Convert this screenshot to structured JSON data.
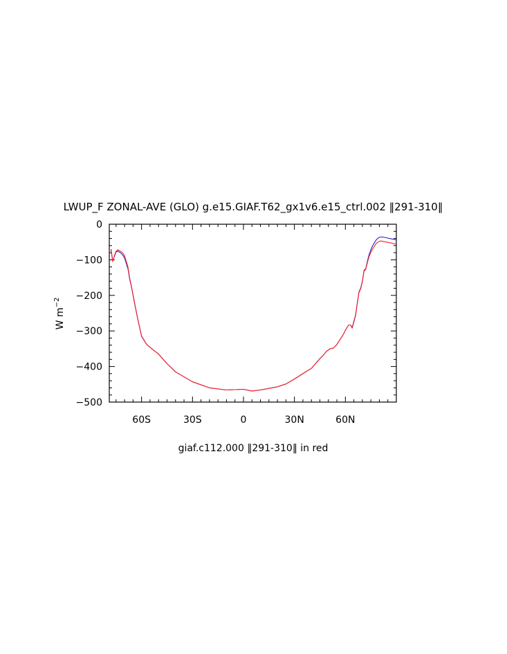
{
  "chart_data": {
    "type": "line",
    "title": "LWUP_F ZONAL-AVE (GLO) g.e15.GIAF.T62_gx1v6.e15_ctrl.002 ‖291-310‖",
    "subtitle": "giaf.c112.000 ‖291-310‖ in red",
    "ylabel_main": "W m",
    "ylabel_exp": "−2",
    "xlabel": "",
    "xlim": [
      -79,
      90
    ],
    "ylim": [
      -500,
      0
    ],
    "grid": false,
    "x_ticks": [
      {
        "value": -60,
        "label": "60S"
      },
      {
        "value": -30,
        "label": "30S"
      },
      {
        "value": 0,
        "label": "0"
      },
      {
        "value": 30,
        "label": "30N"
      },
      {
        "value": 60,
        "label": "60N"
      }
    ],
    "y_ticks": [
      {
        "value": 0,
        "label": "0"
      },
      {
        "value": -100,
        "label": "−100"
      },
      {
        "value": -200,
        "label": "−200"
      },
      {
        "value": -300,
        "label": "−300"
      },
      {
        "value": -400,
        "label": "−400"
      },
      {
        "value": -500,
        "label": "−500"
      }
    ],
    "series": [
      {
        "color": "#1f1fd0",
        "x": [
          -78,
          -77,
          -76,
          -75,
          -74,
          -72,
          -71,
          -70,
          -68,
          -67,
          -66,
          -64,
          -62,
          -60,
          -57,
          -54,
          -50,
          -45,
          -40,
          -30,
          -20,
          -10,
          0,
          5,
          10,
          20,
          25,
          30,
          35,
          40,
          45,
          47,
          49,
          51,
          53,
          55,
          57,
          59,
          60,
          61,
          62,
          63,
          64,
          65,
          66,
          67,
          68,
          69,
          70,
          71,
          72,
          73,
          74,
          75,
          76,
          77,
          78,
          79,
          80,
          81,
          82,
          83,
          84,
          85,
          86,
          87,
          88,
          89,
          90
        ],
        "y": [
          -70,
          -103,
          -90,
          -78,
          -75,
          -82,
          -87,
          -95,
          -125,
          -155,
          -175,
          -225,
          -272,
          -315,
          -338,
          -350,
          -365,
          -392,
          -415,
          -443,
          -460,
          -466,
          -464,
          -469,
          -466,
          -457,
          -449,
          -435,
          -420,
          -405,
          -378,
          -368,
          -357,
          -350,
          -348,
          -338,
          -323,
          -308,
          -298,
          -290,
          -283,
          -283,
          -290,
          -273,
          -255,
          -222,
          -190,
          -180,
          -160,
          -130,
          -125,
          -103,
          -85,
          -72,
          -61,
          -53,
          -45,
          -40,
          -37,
          -36,
          -36,
          -37,
          -38,
          -39,
          -40,
          -41,
          -42,
          -43,
          -44
        ]
      },
      {
        "color": "#ff2020",
        "x": [
          -78,
          -77,
          -76,
          -75,
          -74,
          -72,
          -71,
          -70,
          -68,
          -67,
          -66,
          -64,
          -62,
          -60,
          -57,
          -54,
          -50,
          -45,
          -40,
          -30,
          -20,
          -10,
          0,
          5,
          10,
          20,
          25,
          30,
          35,
          40,
          45,
          47,
          49,
          51,
          53,
          55,
          57,
          59,
          60,
          61,
          62,
          63,
          64,
          65,
          66,
          67,
          68,
          69,
          70,
          71,
          72,
          73,
          74,
          75,
          76,
          77,
          78,
          79,
          80,
          81,
          82,
          83,
          84,
          85,
          86,
          87,
          88,
          89,
          90
        ],
        "y": [
          -72,
          -105,
          -88,
          -76,
          -72,
          -77,
          -81,
          -89,
          -120,
          -152,
          -173,
          -223,
          -271,
          -314,
          -338,
          -350,
          -365,
          -392,
          -415,
          -443,
          -460,
          -466,
          -464,
          -469,
          -466,
          -457,
          -449,
          -435,
          -420,
          -405,
          -378,
          -368,
          -357,
          -350,
          -348,
          -338,
          -323,
          -308,
          -298,
          -290,
          -283,
          -283,
          -292,
          -275,
          -257,
          -224,
          -192,
          -182,
          -162,
          -132,
          -127,
          -107,
          -90,
          -79,
          -70,
          -62,
          -55,
          -51,
          -48,
          -47,
          -48,
          -49,
          -50,
          -51,
          -52,
          -53,
          -54,
          -55,
          -56
        ]
      }
    ]
  }
}
